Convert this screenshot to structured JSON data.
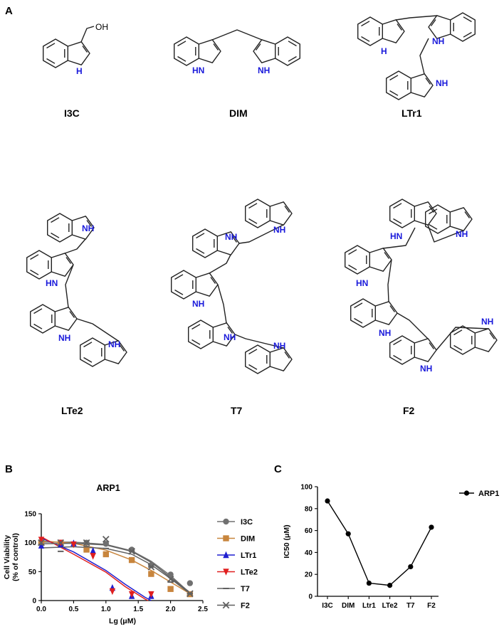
{
  "panels": {
    "a": "A",
    "b": "B",
    "c": "C"
  },
  "molecules": {
    "i3c": {
      "label": "I3C",
      "oh": "OH",
      "nh": "H"
    },
    "dim": {
      "label": "DIM",
      "nh": "HN",
      "nh2": "NH"
    },
    "ltr1": {
      "label": "LTr1",
      "nh": "H",
      "nh2": "NH",
      "nh3": "NH"
    },
    "lte2": {
      "label": "LTe2",
      "nh": "NH",
      "nh2": "HN",
      "nh3": "NH",
      "nh4": "NH"
    },
    "t7": {
      "label": "T7",
      "nh": "NH",
      "nh2": "NH",
      "nh3": "NH",
      "nh4": "NH",
      "nh5": "NH"
    },
    "f2": {
      "label": "F2",
      "nh": "HN",
      "nh2": "NH",
      "nh3": "HN",
      "nh4": "NH",
      "nh5": "NH",
      "nh6": "NH"
    }
  },
  "chart_data": [
    {
      "type": "scatter",
      "title": "ARP1",
      "xlabel": "Lg (μM)",
      "ylabel": "Cell Viability\n(% of control)",
      "ylabel_lines": [
        "Cell Viability",
        "(% of control)"
      ],
      "xlim": [
        0,
        2.5
      ],
      "ylim": [
        0,
        150
      ],
      "xticks": [
        "0.0",
        "0.5",
        "1.0",
        "1.5",
        "2.0",
        "2.5"
      ],
      "yticks": [
        "0",
        "50",
        "100",
        "150"
      ],
      "legend_position": "right",
      "series": [
        {
          "name": "I3C",
          "color": "#707070",
          "marker": "circle",
          "x": [
            0,
            0.3,
            0.7,
            1.0,
            1.4,
            1.7,
            2.0,
            2.3
          ],
          "y": [
            100,
            100,
            100,
            98,
            88,
            61,
            45,
            30
          ],
          "fit": [
            [
              0,
              101
            ],
            [
              0.5,
              101
            ],
            [
              1.0,
              97
            ],
            [
              1.4,
              86
            ],
            [
              1.7,
              68
            ],
            [
              2.0,
              43
            ],
            [
              2.3,
              13
            ]
          ]
        },
        {
          "name": "DIM",
          "color": "#c8853d",
          "marker": "square",
          "x": [
            0,
            0.3,
            0.7,
            1.0,
            1.4,
            1.7,
            2.0,
            2.3
          ],
          "y": [
            100,
            98,
            88,
            80,
            70,
            46,
            20,
            11
          ],
          "fit": [
            [
              0,
              103
            ],
            [
              0.5,
              99
            ],
            [
              1.0,
              87
            ],
            [
              1.4,
              70
            ],
            [
              1.7,
              52
            ],
            [
              2.0,
              32
            ],
            [
              2.3,
              12
            ]
          ]
        },
        {
          "name": "LTr1",
          "color": "#1f1fd0",
          "marker": "triangle-up",
          "x": [
            0,
            0.3,
            0.5,
            0.8,
            1.1,
            1.4,
            1.7
          ],
          "y": [
            95,
            97,
            99,
            86,
            22,
            8,
            8
          ],
          "fit": [
            [
              0,
              108
            ],
            [
              0.5,
              84
            ],
            [
              1.0,
              52
            ],
            [
              1.3,
              28
            ],
            [
              1.6,
              6
            ],
            [
              1.7,
              0
            ]
          ]
        },
        {
          "name": "LTe2",
          "color": "#e01f1f",
          "marker": "triangle-down",
          "x": [
            0,
            0.3,
            0.5,
            0.8,
            1.1,
            1.4,
            1.7
          ],
          "y": [
            105,
            100,
            97,
            77,
            16,
            11,
            11
          ],
          "fit": [
            [
              0,
              110
            ],
            [
              0.5,
              80
            ],
            [
              1.0,
              49
            ],
            [
              1.3,
              24
            ],
            [
              1.6,
              3
            ],
            [
              1.65,
              0
            ]
          ]
        },
        {
          "name": "T7",
          "color": "#606060",
          "marker": "dash",
          "x": [
            0,
            0.3,
            0.7,
            1.0,
            1.4,
            1.7,
            2.0,
            2.3
          ],
          "y": [
            97,
            85,
            93,
            90,
            85,
            58,
            32,
            12
          ],
          "fit": [
            [
              0,
              91
            ],
            [
              0.5,
              93
            ],
            [
              1.0,
              90
            ],
            [
              1.4,
              80
            ],
            [
              1.7,
              62
            ],
            [
              2.0,
              38
            ],
            [
              2.3,
              12
            ]
          ]
        },
        {
          "name": "F2",
          "color": "#606060",
          "marker": "x",
          "x": [
            0,
            0.3,
            0.7,
            1.0,
            1.4,
            1.7,
            2.0,
            2.3
          ],
          "y": [
            100,
            100,
            100,
            106,
            85,
            58,
            37,
            12
          ],
          "fit": [
            [
              0,
              98
            ],
            [
              0.5,
              99
            ],
            [
              1.0,
              96
            ],
            [
              1.4,
              85
            ],
            [
              1.7,
              66
            ],
            [
              2.0,
              40
            ],
            [
              2.3,
              14
            ]
          ]
        }
      ]
    },
    {
      "type": "line",
      "title": "",
      "xlabel": "",
      "ylabel": "IC50 (μM)",
      "categories": [
        "I3C",
        "DIM",
        "Ltr1",
        "LTe2",
        "T7",
        "F2"
      ],
      "ylim": [
        0,
        100
      ],
      "yticks": [
        "0",
        "20",
        "40",
        "60",
        "80",
        "100"
      ],
      "legend_position": "right",
      "series": [
        {
          "name": "ARP1",
          "color": "#000000",
          "values": [
            87,
            57,
            12,
            10,
            27,
            63
          ]
        }
      ]
    }
  ]
}
